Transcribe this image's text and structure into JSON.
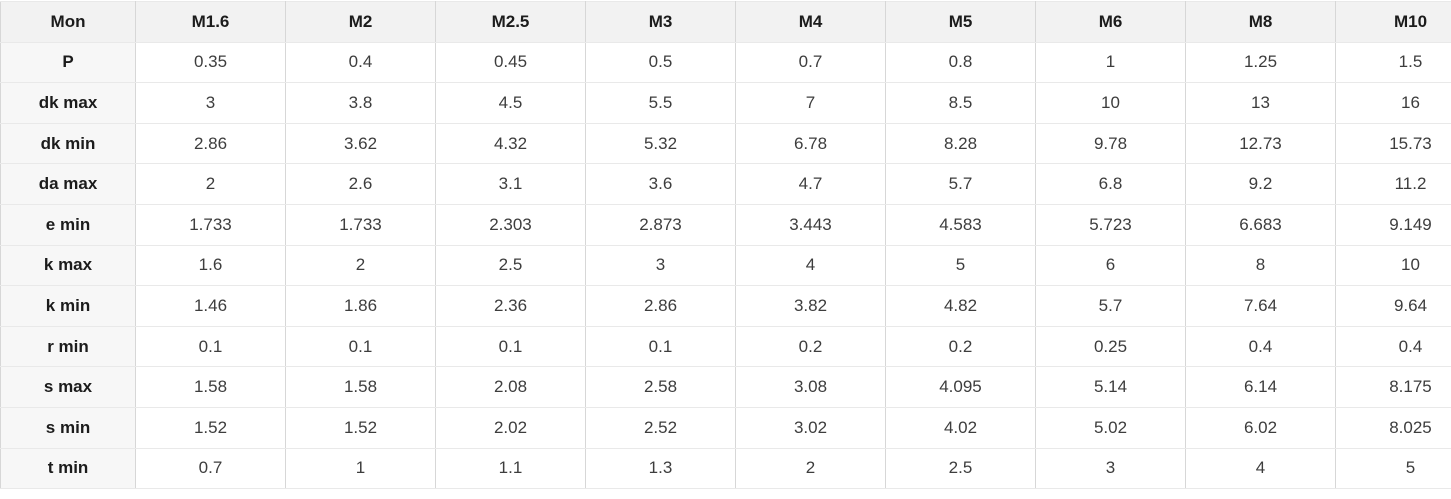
{
  "table": {
    "corner_label": "Mon",
    "columns": [
      "M1.6",
      "M2",
      "M2.5",
      "M3",
      "M4",
      "M5",
      "M6",
      "M8",
      "M10"
    ],
    "rows": [
      {
        "label": "P",
        "values": [
          "0.35",
          "0.4",
          "0.45",
          "0.5",
          "0.7",
          "0.8",
          "1",
          "1.25",
          "1.5"
        ]
      },
      {
        "label": "dk max",
        "values": [
          "3",
          "3.8",
          "4.5",
          "5.5",
          "7",
          "8.5",
          "10",
          "13",
          "16"
        ]
      },
      {
        "label": "dk min",
        "values": [
          "2.86",
          "3.62",
          "4.32",
          "5.32",
          "6.78",
          "8.28",
          "9.78",
          "12.73",
          "15.73"
        ]
      },
      {
        "label": "da max",
        "values": [
          "2",
          "2.6",
          "3.1",
          "3.6",
          "4.7",
          "5.7",
          "6.8",
          "9.2",
          "11.2"
        ]
      },
      {
        "label": "e min",
        "values": [
          "1.733",
          "1.733",
          "2.303",
          "2.873",
          "3.443",
          "4.583",
          "5.723",
          "6.683",
          "9.149"
        ]
      },
      {
        "label": "k max",
        "values": [
          "1.6",
          "2",
          "2.5",
          "3",
          "4",
          "5",
          "6",
          "8",
          "10"
        ]
      },
      {
        "label": "k min",
        "values": [
          "1.46",
          "1.86",
          "2.36",
          "2.86",
          "3.82",
          "4.82",
          "5.7",
          "7.64",
          "9.64"
        ]
      },
      {
        "label": "r min",
        "values": [
          "0.1",
          "0.1",
          "0.1",
          "0.1",
          "0.2",
          "0.2",
          "0.25",
          "0.4",
          "0.4"
        ]
      },
      {
        "label": "s max",
        "values": [
          "1.58",
          "1.58",
          "2.08",
          "2.58",
          "3.08",
          "4.095",
          "5.14",
          "6.14",
          "8.175"
        ]
      },
      {
        "label": "s min",
        "values": [
          "1.52",
          "1.52",
          "2.02",
          "2.52",
          "3.02",
          "4.02",
          "5.02",
          "6.02",
          "8.025"
        ]
      },
      {
        "label": "t min",
        "values": [
          "0.7",
          "1",
          "1.1",
          "1.3",
          "2",
          "2.5",
          "3",
          "4",
          "5"
        ]
      }
    ]
  },
  "colors": {
    "header_background": "#f2f2f2",
    "row_label_background": "#f7f7f7",
    "cell_background": "#ffffff",
    "border_vertical": "#d7d7d7",
    "border_horizontal": "#e9e9e9",
    "header_text": "#1c1c1c",
    "value_text": "#3d3d3d"
  },
  "chart_data": {
    "type": "table",
    "title": "Mon",
    "categories": [
      "M1.6",
      "M2",
      "M2.5",
      "M3",
      "M4",
      "M5",
      "M6",
      "M8",
      "M10"
    ],
    "series": [
      {
        "name": "P",
        "values": [
          0.35,
          0.4,
          0.45,
          0.5,
          0.7,
          0.8,
          1,
          1.25,
          1.5
        ]
      },
      {
        "name": "dk max",
        "values": [
          3,
          3.8,
          4.5,
          5.5,
          7,
          8.5,
          10,
          13,
          16
        ]
      },
      {
        "name": "dk min",
        "values": [
          2.86,
          3.62,
          4.32,
          5.32,
          6.78,
          8.28,
          9.78,
          12.73,
          15.73
        ]
      },
      {
        "name": "da max",
        "values": [
          2,
          2.6,
          3.1,
          3.6,
          4.7,
          5.7,
          6.8,
          9.2,
          11.2
        ]
      },
      {
        "name": "e min",
        "values": [
          1.733,
          1.733,
          2.303,
          2.873,
          3.443,
          4.583,
          5.723,
          6.683,
          9.149
        ]
      },
      {
        "name": "k max",
        "values": [
          1.6,
          2,
          2.5,
          3,
          4,
          5,
          6,
          8,
          10
        ]
      },
      {
        "name": "k min",
        "values": [
          1.46,
          1.86,
          2.36,
          2.86,
          3.82,
          4.82,
          5.7,
          7.64,
          9.64
        ]
      },
      {
        "name": "r min",
        "values": [
          0.1,
          0.1,
          0.1,
          0.1,
          0.2,
          0.2,
          0.25,
          0.4,
          0.4
        ]
      },
      {
        "name": "s max",
        "values": [
          1.58,
          1.58,
          2.08,
          2.58,
          3.08,
          4.095,
          5.14,
          6.14,
          8.175
        ]
      },
      {
        "name": "s min",
        "values": [
          1.52,
          1.52,
          2.02,
          2.52,
          3.02,
          4.02,
          5.02,
          6.02,
          8.025
        ]
      },
      {
        "name": "t min",
        "values": [
          0.7,
          1,
          1.1,
          1.3,
          2,
          2.5,
          3,
          4,
          5
        ]
      }
    ]
  }
}
